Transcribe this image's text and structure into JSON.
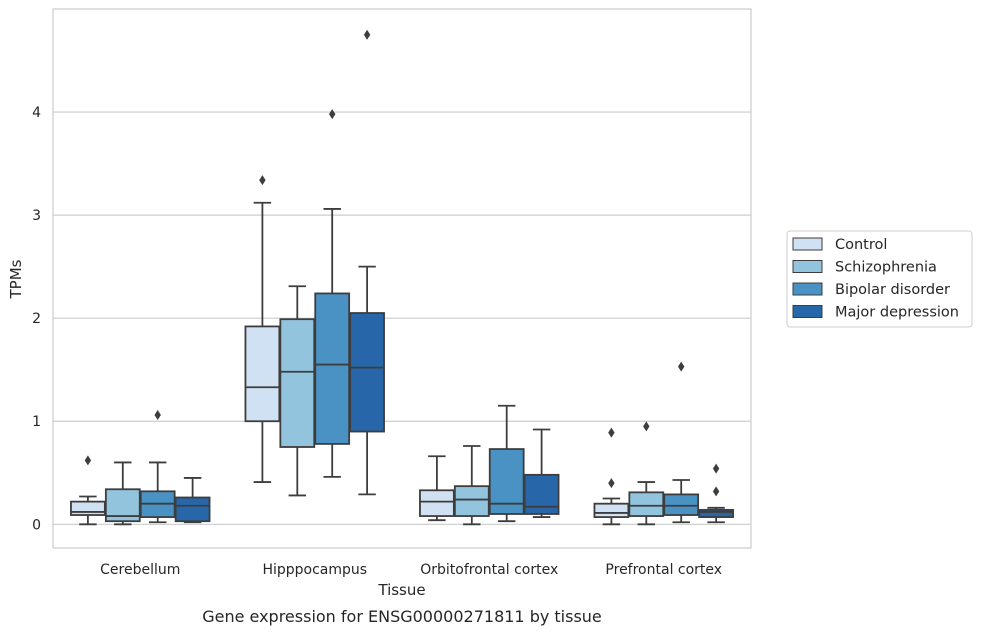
{
  "chart_data": {
    "type": "box",
    "xlabel": "Tissue",
    "ylabel": "TPMs",
    "caption": "Gene expression for ENSG00000271811 by tissue",
    "ylim": [
      -0.23,
      5.0
    ],
    "yticks": [
      0,
      1,
      2,
      3,
      4
    ],
    "grid": "horizontal",
    "legend_position": "right",
    "categories": [
      "Cerebellum",
      "Hipppocampus",
      "Orbitofrontal cortex",
      "Prefrontal cortex"
    ],
    "series": [
      {
        "name": "Control",
        "color": "#cfe1f2",
        "boxes": [
          {
            "min": 0.0,
            "q1": 0.09,
            "median": 0.12,
            "q3": 0.22,
            "max": 0.27,
            "outliers": [
              0.62
            ]
          },
          {
            "min": 0.41,
            "q1": 1.0,
            "median": 1.33,
            "q3": 1.92,
            "max": 3.12,
            "outliers": [
              3.34
            ]
          },
          {
            "min": 0.04,
            "q1": 0.08,
            "median": 0.22,
            "q3": 0.33,
            "max": 0.66,
            "outliers": []
          },
          {
            "min": 0.0,
            "q1": 0.07,
            "median": 0.11,
            "q3": 0.2,
            "max": 0.25,
            "outliers": [
              0.4,
              0.89
            ]
          }
        ]
      },
      {
        "name": "Schizophrenia",
        "color": "#93c4de",
        "boxes": [
          {
            "min": 0.0,
            "q1": 0.03,
            "median": 0.08,
            "q3": 0.34,
            "max": 0.6,
            "outliers": []
          },
          {
            "min": 0.28,
            "q1": 0.75,
            "median": 1.48,
            "q3": 1.99,
            "max": 2.31,
            "outliers": []
          },
          {
            "min": 0.0,
            "q1": 0.08,
            "median": 0.24,
            "q3": 0.37,
            "max": 0.76,
            "outliers": []
          },
          {
            "min": 0.0,
            "q1": 0.08,
            "median": 0.18,
            "q3": 0.31,
            "max": 0.41,
            "outliers": [
              0.95
            ]
          }
        ]
      },
      {
        "name": "Bipolar disorder",
        "color": "#4a91c4",
        "boxes": [
          {
            "min": 0.02,
            "q1": 0.07,
            "median": 0.2,
            "q3": 0.32,
            "max": 0.6,
            "outliers": [
              1.06
            ]
          },
          {
            "min": 0.46,
            "q1": 0.78,
            "median": 1.55,
            "q3": 2.24,
            "max": 3.06,
            "outliers": [
              3.98
            ]
          },
          {
            "min": 0.03,
            "q1": 0.1,
            "median": 0.2,
            "q3": 0.73,
            "max": 1.15,
            "outliers": []
          },
          {
            "min": 0.02,
            "q1": 0.09,
            "median": 0.18,
            "q3": 0.29,
            "max": 0.43,
            "outliers": [
              1.53
            ]
          }
        ]
      },
      {
        "name": "Major depression",
        "color": "#2766a8",
        "boxes": [
          {
            "min": 0.02,
            "q1": 0.03,
            "median": 0.18,
            "q3": 0.26,
            "max": 0.45,
            "outliers": []
          },
          {
            "min": 0.29,
            "q1": 0.9,
            "median": 1.52,
            "q3": 2.05,
            "max": 2.5,
            "outliers": [
              4.75
            ]
          },
          {
            "min": 0.07,
            "q1": 0.1,
            "median": 0.17,
            "q3": 0.48,
            "max": 0.92,
            "outliers": []
          },
          {
            "min": 0.02,
            "q1": 0.07,
            "median": 0.12,
            "q3": 0.14,
            "max": 0.16,
            "outliers": [
              0.32,
              0.54
            ]
          }
        ]
      }
    ]
  }
}
